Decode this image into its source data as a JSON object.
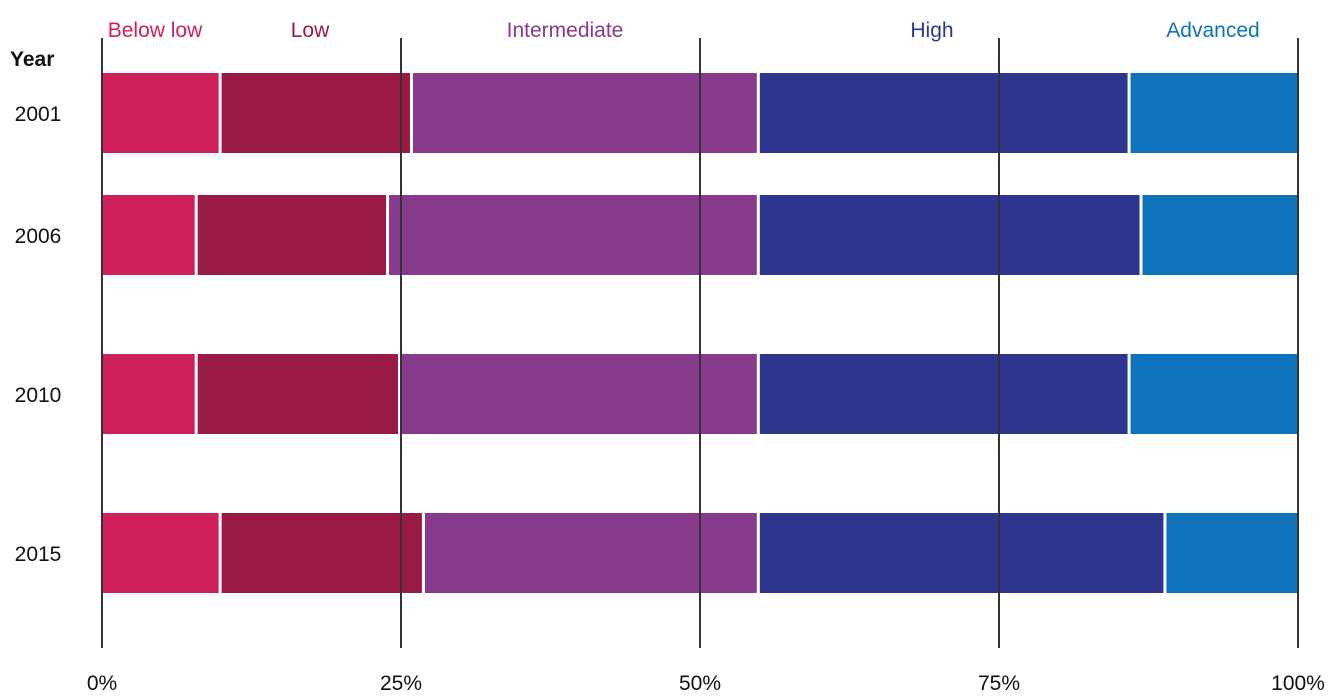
{
  "chart_data": {
    "type": "bar",
    "orientation": "horizontal",
    "stacked": true,
    "normalized_percent": true,
    "ylabel": "Year",
    "categories": [
      "2001",
      "2006",
      "2010",
      "2015"
    ],
    "series": [
      {
        "name": "Below low",
        "color": "#ce1f5a",
        "values": [
          10,
          8,
          8,
          10
        ]
      },
      {
        "name": "Low",
        "color": "#991b45",
        "values": [
          16,
          16,
          17,
          17
        ]
      },
      {
        "name": "Intermediate",
        "color": "#873a8b",
        "values": [
          29,
          31,
          30,
          28
        ]
      },
      {
        "name": "High",
        "color": "#2e358f",
        "values": [
          31,
          32,
          31,
          34
        ]
      },
      {
        "name": "Advanced",
        "color": "#0e73bb",
        "values": [
          14,
          13,
          14,
          11
        ]
      }
    ],
    "xlim": [
      0,
      100
    ],
    "x_ticks": [
      0,
      25,
      50,
      75,
      100
    ],
    "x_tick_labels": [
      "0%",
      "25%",
      "50%",
      "75%",
      "100%"
    ],
    "legend_position": "top",
    "grid": "vertical lines at ticks"
  }
}
